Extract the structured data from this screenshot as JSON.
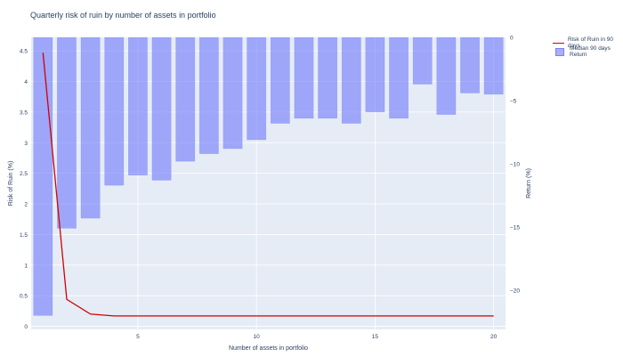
{
  "title": "Quarterly risk of ruin by number of assets in portfolio",
  "chart_data": {
    "type": "bar+line",
    "title": "Quarterly risk of ruin by number of assets in portfolio",
    "xlabel": "Number of assets in portfolio",
    "ylabel_left": "Risk of Ruin (%)",
    "ylabel_right": "Return (%)",
    "x": [
      1,
      2,
      3,
      4,
      5,
      6,
      7,
      8,
      9,
      10,
      11,
      12,
      13,
      14,
      15,
      16,
      17,
      18,
      19,
      20
    ],
    "x_ticks": [
      "5",
      "10",
      "15",
      "20"
    ],
    "y_left_ticks": [
      "0",
      "0.5",
      "1",
      "1.5",
      "2",
      "2.5",
      "3",
      "3.5",
      "4",
      "4.5"
    ],
    "y_right_ticks": [
      "0",
      "−5",
      "−10",
      "−15",
      "−20"
    ],
    "xlim": [
      0.5,
      20.5
    ],
    "ylim_left": [
      -0.05,
      4.72
    ],
    "ylim_right": [
      -23.1,
      0
    ],
    "grid": true,
    "legend_position": "top-right",
    "series": [
      {
        "name": "Risk of Ruin in 90 days",
        "type": "line",
        "axis": "left",
        "color": "#d20000",
        "values": [
          4.47,
          0.44,
          0.2,
          0.17,
          0.17,
          0.17,
          0.17,
          0.17,
          0.17,
          0.17,
          0.17,
          0.17,
          0.17,
          0.17,
          0.17,
          0.17,
          0.17,
          0.17,
          0.17,
          0.17
        ]
      },
      {
        "name": "Median 90 days Return",
        "type": "bar",
        "axis": "right",
        "color": "#636efa",
        "values": [
          -22.0,
          -15.1,
          -14.3,
          -11.7,
          -10.9,
          -11.3,
          -9.8,
          -9.2,
          -8.8,
          -8.1,
          -6.8,
          -6.4,
          -6.4,
          -6.8,
          -5.9,
          -6.4,
          -3.7,
          -6.1,
          -4.4,
          -4.5
        ]
      }
    ]
  }
}
